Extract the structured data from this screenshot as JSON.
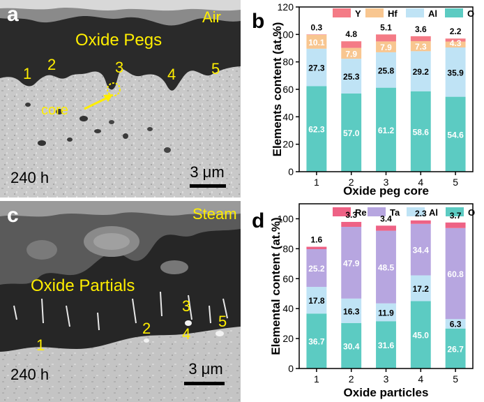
{
  "panel_a": {
    "label": "a",
    "ambient": "Air",
    "title": "Oxide Pegs",
    "markers": [
      "1",
      "2",
      "3",
      "4",
      "5"
    ],
    "core_label": "core",
    "time": "240 h",
    "scale": "3 μm"
  },
  "panel_c": {
    "label": "c",
    "ambient": "Steam",
    "title": "Oxide Partials",
    "markers": [
      "1",
      "2",
      "3",
      "4",
      "5"
    ],
    "time": "240 h",
    "scale": "3 μm"
  },
  "chart_data": [
    {
      "panel_label": "b",
      "type": "bar",
      "stacked": true,
      "categories": [
        "1",
        "2",
        "3",
        "4",
        "5"
      ],
      "xlabel": "Oxide peg core",
      "ylabel": "Elements content (at.%)",
      "ylim": [
        0,
        120
      ],
      "yticks": [
        "0",
        "20",
        "40",
        "60",
        "80",
        "100",
        "120"
      ],
      "legend_placement": "top",
      "series": [
        {
          "name": "O",
          "color": "#5ccbc2",
          "values": [
            62.3,
            57.0,
            61.2,
            58.6,
            54.6
          ],
          "labels": [
            "62.3",
            "57.0",
            "61.2",
            "58.6",
            "54.6"
          ]
        },
        {
          "name": "Al",
          "color": "#bfe3f5",
          "values": [
            27.3,
            25.3,
            25.8,
            29.2,
            35.9
          ],
          "labels": [
            "27.3",
            "25.3",
            "25.8",
            "29.2",
            "35.9"
          ]
        },
        {
          "name": "Hf",
          "color": "#f8c690",
          "values": [
            10.1,
            7.9,
            7.9,
            7.3,
            4.3
          ],
          "labels": [
            "10.1",
            "7.9",
            "7.9",
            "7.3",
            "4.3"
          ]
        },
        {
          "name": "Y",
          "color": "#f47b86",
          "values": [
            0.3,
            4.8,
            5.1,
            3.6,
            2.2
          ],
          "labels": [
            "0.3",
            "4.8",
            "5.1",
            "3.6",
            "2.2"
          ]
        }
      ]
    },
    {
      "panel_label": "d",
      "type": "bar",
      "stacked": true,
      "categories": [
        "1",
        "2",
        "3",
        "4",
        "5"
      ],
      "xlabel": "Oxide particles",
      "ylabel": "Elemental content (at.%)",
      "ylim": [
        0,
        110
      ],
      "yticks": [
        "0",
        "20",
        "40",
        "60",
        "80",
        "100"
      ],
      "legend_placement": "top",
      "series": [
        {
          "name": "O",
          "color": "#5ccbc2",
          "values": [
            36.7,
            30.4,
            31.6,
            45.0,
            26.7
          ],
          "labels": [
            "36.7",
            "30.4",
            "31.6",
            "45.0",
            "26.7"
          ]
        },
        {
          "name": "Al",
          "color": "#bfe3f5",
          "values": [
            17.8,
            16.3,
            11.9,
            17.2,
            6.3
          ],
          "labels": [
            "17.8",
            "16.3",
            "11.9",
            "17.2",
            "6.3"
          ]
        },
        {
          "name": "Ta",
          "color": "#b7a6e0",
          "values": [
            25.2,
            47.9,
            48.5,
            34.4,
            60.8
          ],
          "labels": [
            "25.2",
            "47.9",
            "48.5",
            "34.4",
            "60.8"
          ]
        },
        {
          "name": "Re",
          "color": "#ee6285",
          "values": [
            1.6,
            3.3,
            3.4,
            2.3,
            3.7
          ],
          "labels": [
            "1.6",
            "3.3",
            "3.4",
            "2.3",
            "3.7"
          ]
        }
      ]
    }
  ]
}
